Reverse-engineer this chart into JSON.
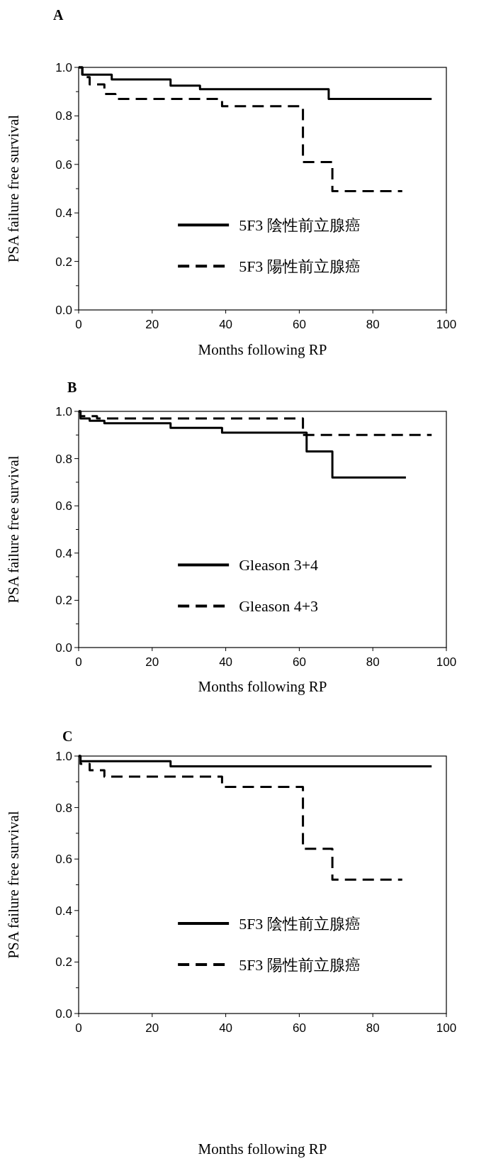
{
  "chart_data": [
    {
      "type": "step",
      "title": "A",
      "xlabel": "Months following RP",
      "ylabel": "PSA failure free survival",
      "xlim": [
        0,
        100
      ],
      "xticks": [
        0,
        20,
        40,
        60,
        80,
        100
      ],
      "ylim": [
        0,
        1
      ],
      "yticks": [
        {
          "value": 0,
          "label": "0.0"
        },
        {
          "value": 0.1,
          "label": null
        },
        {
          "value": 0.2,
          "label": "0.2"
        },
        {
          "value": 0.3,
          "label": null
        },
        {
          "value": 0.4,
          "label": "0.4"
        },
        {
          "value": 0.5,
          "label": null
        },
        {
          "value": 0.6,
          "label": "0.6"
        },
        {
          "value": 0.7,
          "label": null
        },
        {
          "value": 0.8,
          "label": "0.8"
        },
        {
          "value": 0.9,
          "label": null
        },
        {
          "value": 1,
          "label": "1.0"
        }
      ],
      "legend": "bottom right",
      "grid": false,
      "series": [
        {
          "name": "5F3 陰性前立腺癌",
          "color": "#000000",
          "line_style": "solid",
          "x": [
            0,
            1,
            9,
            25,
            33,
            68,
            96
          ],
          "values": [
            1.0,
            0.97,
            0.95,
            0.925,
            0.91,
            0.87,
            0.87
          ]
        },
        {
          "name": "5F3 陽性前立腺癌",
          "color": "#000000",
          "line_style": "dashed",
          "x": [
            0,
            1,
            3,
            7,
            10,
            39,
            61,
            69,
            88
          ],
          "values": [
            1.0,
            0.96,
            0.93,
            0.89,
            0.87,
            0.84,
            0.61,
            0.49,
            0.49
          ]
        }
      ]
    },
    {
      "type": "step",
      "title": "B",
      "xlabel": "Months following RP",
      "ylabel": "PSA failure free survival",
      "xlim": [
        0,
        100
      ],
      "xticks": [
        0,
        20,
        40,
        60,
        80,
        100
      ],
      "ylim": [
        0,
        1
      ],
      "yticks": [
        {
          "value": 0,
          "label": "0.0"
        },
        {
          "value": 0.1,
          "label": null
        },
        {
          "value": 0.2,
          "label": "0.2"
        },
        {
          "value": 0.3,
          "label": null
        },
        {
          "value": 0.4,
          "label": "0.4"
        },
        {
          "value": 0.5,
          "label": null
        },
        {
          "value": 0.6,
          "label": "0.6"
        },
        {
          "value": 0.7,
          "label": null
        },
        {
          "value": 0.8,
          "label": "0.8"
        },
        {
          "value": 0.9,
          "label": null
        },
        {
          "value": 1,
          "label": "1.0"
        }
      ],
      "legend": "bottom right",
      "grid": false,
      "series": [
        {
          "name": "Gleason 3+4",
          "color": "#000000",
          "line_style": "solid",
          "x": [
            0,
            0.5,
            3,
            7,
            25,
            39,
            62,
            69,
            89
          ],
          "values": [
            1.0,
            0.97,
            0.96,
            0.95,
            0.93,
            0.91,
            0.83,
            0.72,
            0.72
          ]
        },
        {
          "name": "Gleason 4+3",
          "color": "#000000",
          "line_style": "dashed",
          "x": [
            0,
            0.5,
            5,
            61,
            96
          ],
          "values": [
            1.0,
            0.98,
            0.97,
            0.9,
            0.9
          ]
        }
      ]
    },
    {
      "type": "step",
      "title": "C",
      "xlabel": "Months following RP",
      "ylabel": "PSA failure free survival",
      "xlim": [
        0,
        100
      ],
      "xticks": [
        0,
        20,
        40,
        60,
        80,
        100
      ],
      "ylim": [
        0,
        1
      ],
      "yticks": [
        {
          "value": 0,
          "label": "0.0"
        },
        {
          "value": 0.1,
          "label": null
        },
        {
          "value": 0.2,
          "label": "0.2"
        },
        {
          "value": 0.3,
          "label": null
        },
        {
          "value": 0.4,
          "label": "0.4"
        },
        {
          "value": 0.5,
          "label": null
        },
        {
          "value": 0.6,
          "label": "0.6"
        },
        {
          "value": 0.7,
          "label": null
        },
        {
          "value": 0.8,
          "label": "0.8"
        },
        {
          "value": 0.9,
          "label": null
        },
        {
          "value": 1,
          "label": "1.0"
        }
      ],
      "legend": "bottom right",
      "grid": false,
      "series": [
        {
          "name": "5F3 陰性前立腺癌",
          "color": "#000000",
          "line_style": "solid",
          "x": [
            0,
            0.5,
            25,
            96
          ],
          "values": [
            1.0,
            0.98,
            0.96,
            0.96
          ]
        },
        {
          "name": "5F3 陽性前立腺癌",
          "color": "#000000",
          "line_style": "dashed",
          "x": [
            0,
            0.5,
            3,
            7,
            39,
            61,
            69,
            88
          ],
          "values": [
            1.0,
            0.97,
            0.945,
            0.92,
            0.88,
            0.64,
            0.52,
            0.52
          ]
        }
      ]
    }
  ]
}
